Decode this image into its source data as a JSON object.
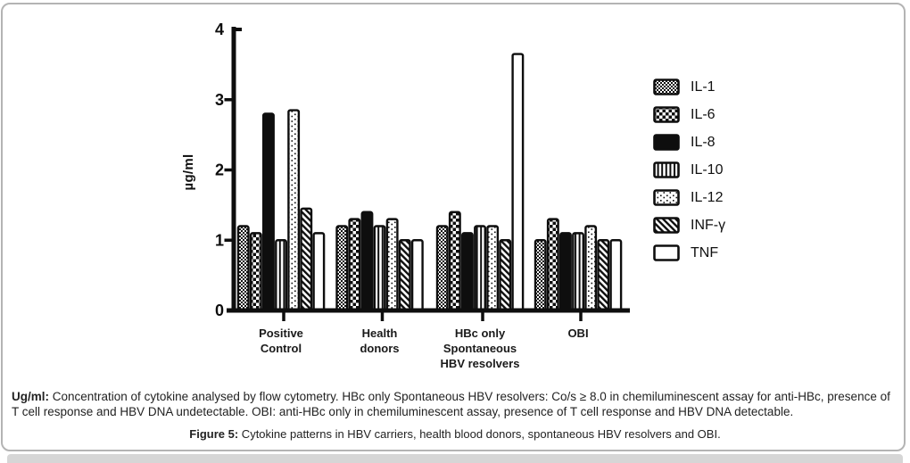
{
  "chart_data": {
    "type": "bar",
    "title": "",
    "xlabel": "",
    "ylabel": "µg/ml",
    "ylim": [
      0,
      4
    ],
    "yticks": [
      0,
      1,
      2,
      3,
      4
    ],
    "grid": "off",
    "legend_position": "right",
    "categories": [
      "Positive Control",
      "Health donors",
      "HBc only Spontaneous HBV resolvers",
      "OBI"
    ],
    "category_label_lines": [
      [
        "Positive",
        "Control"
      ],
      [
        "Health",
        "donors"
      ],
      [
        "HBc only",
        "Spontaneous",
        "HBV resolvers"
      ],
      [
        "OBI"
      ]
    ],
    "series": [
      {
        "name": "IL-1",
        "pattern": "fine-checker",
        "values": [
          1.2,
          1.2,
          1.2,
          1.0
        ]
      },
      {
        "name": "IL-6",
        "pattern": "coarse-checker",
        "values": [
          1.1,
          1.3,
          1.4,
          1.3
        ]
      },
      {
        "name": "IL-8",
        "pattern": "solid",
        "values": [
          2.8,
          1.4,
          1.1,
          1.1
        ]
      },
      {
        "name": "IL-10",
        "pattern": "vertical-stripes",
        "values": [
          1.0,
          1.2,
          1.2,
          1.1
        ]
      },
      {
        "name": "IL-12",
        "pattern": "sparse-dots",
        "values": [
          2.85,
          1.3,
          1.2,
          1.2
        ]
      },
      {
        "name": "INF-γ",
        "pattern": "diagonal-stripes",
        "values": [
          1.45,
          1.0,
          1.0,
          1.0
        ]
      },
      {
        "name": "TNF",
        "pattern": "white",
        "values": [
          1.1,
          1.0,
          3.65,
          1.0
        ]
      }
    ]
  },
  "notes": {
    "lead": "Ug/ml:",
    "line1_rest": " Concentration of cytokine analysed by flow cytometry. HBc only Spontaneous HBV resolvers: Co/s ≥ 8.0 in chemiluminescent assay for anti-HBc, presence of",
    "line2": "T cell response and HBV DNA undetectable. OBI: anti-HBc only in chemiluminescent assay, presence of T cell response and HBV DNA detectable."
  },
  "figure_caption": {
    "lead": "Figure 5:",
    "body": " Cytokine patterns in HBV carriers, health blood donors, spontaneous HBV resolvers and OBI."
  },
  "colors": {
    "ink": "#0e0e0e",
    "caption_text": "#222222",
    "card_border": "#b4b4b4",
    "bottom_strip": "#d6d6d6",
    "background": "#ffffff"
  }
}
